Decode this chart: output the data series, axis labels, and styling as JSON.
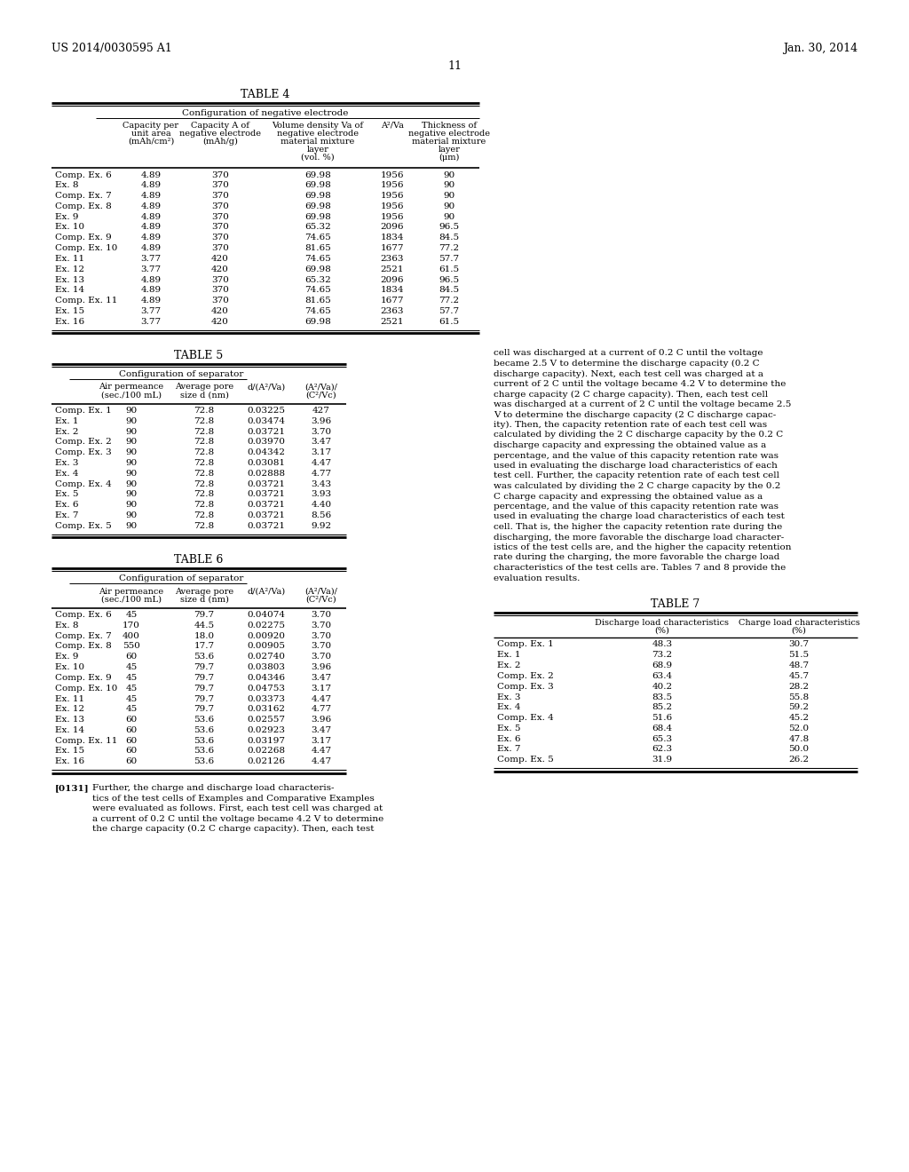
{
  "page_header_left": "US 2014/0030595 A1",
  "page_header_right": "Jan. 30, 2014",
  "page_number": "11",
  "table4_title": "TABLE 4",
  "table4_subtitle": "Configuration of negative electrode",
  "table5_title": "TABLE 5",
  "table5_subtitle": "Configuration of separator",
  "table6_title": "TABLE 6",
  "table6_subtitle": "Configuration of separator",
  "table7_title": "TABLE 7",
  "table4_rows": [
    [
      "Comp. Ex. 6",
      "4.89",
      "370",
      "69.98",
      "1956",
      "90"
    ],
    [
      "Ex. 8",
      "4.89",
      "370",
      "69.98",
      "1956",
      "90"
    ],
    [
      "Comp. Ex. 7",
      "4.89",
      "370",
      "69.98",
      "1956",
      "90"
    ],
    [
      "Comp. Ex. 8",
      "4.89",
      "370",
      "69.98",
      "1956",
      "90"
    ],
    [
      "Ex. 9",
      "4.89",
      "370",
      "69.98",
      "1956",
      "90"
    ],
    [
      "Ex. 10",
      "4.89",
      "370",
      "65.32",
      "2096",
      "96.5"
    ],
    [
      "Comp. Ex. 9",
      "4.89",
      "370",
      "74.65",
      "1834",
      "84.5"
    ],
    [
      "Comp. Ex. 10",
      "4.89",
      "370",
      "81.65",
      "1677",
      "77.2"
    ],
    [
      "Ex. 11",
      "3.77",
      "420",
      "74.65",
      "2363",
      "57.7"
    ],
    [
      "Ex. 12",
      "3.77",
      "420",
      "69.98",
      "2521",
      "61.5"
    ],
    [
      "Ex. 13",
      "4.89",
      "370",
      "65.32",
      "2096",
      "96.5"
    ],
    [
      "Ex. 14",
      "4.89",
      "370",
      "74.65",
      "1834",
      "84.5"
    ],
    [
      "Comp. Ex. 11",
      "4.89",
      "370",
      "81.65",
      "1677",
      "77.2"
    ],
    [
      "Ex. 15",
      "3.77",
      "420",
      "74.65",
      "2363",
      "57.7"
    ],
    [
      "Ex. 16",
      "3.77",
      "420",
      "69.98",
      "2521",
      "61.5"
    ]
  ],
  "table5_rows": [
    [
      "Comp. Ex. 1",
      "90",
      "72.8",
      "0.03225",
      "427"
    ],
    [
      "Ex. 1",
      "90",
      "72.8",
      "0.03474",
      "3.96"
    ],
    [
      "Ex. 2",
      "90",
      "72.8",
      "0.03721",
      "3.70"
    ],
    [
      "Comp. Ex. 2",
      "90",
      "72.8",
      "0.03970",
      "3.47"
    ],
    [
      "Comp. Ex. 3",
      "90",
      "72.8",
      "0.04342",
      "3.17"
    ],
    [
      "Ex. 3",
      "90",
      "72.8",
      "0.03081",
      "4.47"
    ],
    [
      "Ex. 4",
      "90",
      "72.8",
      "0.02888",
      "4.77"
    ],
    [
      "Comp. Ex. 4",
      "90",
      "72.8",
      "0.03721",
      "3.43"
    ],
    [
      "Ex. 5",
      "90",
      "72.8",
      "0.03721",
      "3.93"
    ],
    [
      "Ex. 6",
      "90",
      "72.8",
      "0.03721",
      "4.40"
    ],
    [
      "Ex. 7",
      "90",
      "72.8",
      "0.03721",
      "8.56"
    ],
    [
      "Comp. Ex. 5",
      "90",
      "72.8",
      "0.03721",
      "9.92"
    ]
  ],
  "table6_rows": [
    [
      "Comp. Ex. 6",
      "45",
      "79.7",
      "0.04074",
      "3.70"
    ],
    [
      "Ex. 8",
      "170",
      "44.5",
      "0.02275",
      "3.70"
    ],
    [
      "Comp. Ex. 7",
      "400",
      "18.0",
      "0.00920",
      "3.70"
    ],
    [
      "Comp. Ex. 8",
      "550",
      "17.7",
      "0.00905",
      "3.70"
    ],
    [
      "Ex. 9",
      "60",
      "53.6",
      "0.02740",
      "3.70"
    ],
    [
      "Ex. 10",
      "45",
      "79.7",
      "0.03803",
      "3.96"
    ],
    [
      "Comp. Ex. 9",
      "45",
      "79.7",
      "0.04346",
      "3.47"
    ],
    [
      "Comp. Ex. 10",
      "45",
      "79.7",
      "0.04753",
      "3.17"
    ],
    [
      "Ex. 11",
      "45",
      "79.7",
      "0.03373",
      "4.47"
    ],
    [
      "Ex. 12",
      "45",
      "79.7",
      "0.03162",
      "4.77"
    ],
    [
      "Ex. 13",
      "60",
      "53.6",
      "0.02557",
      "3.96"
    ],
    [
      "Ex. 14",
      "60",
      "53.6",
      "0.02923",
      "3.47"
    ],
    [
      "Comp. Ex. 11",
      "60",
      "53.6",
      "0.03197",
      "3.17"
    ],
    [
      "Ex. 15",
      "60",
      "53.6",
      "0.02268",
      "4.47"
    ],
    [
      "Ex. 16",
      "60",
      "53.6",
      "0.02126",
      "4.47"
    ]
  ],
  "table7_rows": [
    [
      "Comp. Ex. 1",
      "48.3",
      "30.7"
    ],
    [
      "Ex. 1",
      "73.2",
      "51.5"
    ],
    [
      "Ex. 2",
      "68.9",
      "48.7"
    ],
    [
      "Comp. Ex. 2",
      "63.4",
      "45.7"
    ],
    [
      "Comp. Ex. 3",
      "40.2",
      "28.2"
    ],
    [
      "Ex. 3",
      "83.5",
      "55.8"
    ],
    [
      "Ex. 4",
      "85.2",
      "59.2"
    ],
    [
      "Comp. Ex. 4",
      "51.6",
      "45.2"
    ],
    [
      "Ex. 5",
      "68.4",
      "52.0"
    ],
    [
      "Ex. 6",
      "65.3",
      "47.8"
    ],
    [
      "Ex. 7",
      "62.3",
      "50.0"
    ],
    [
      "Comp. Ex. 5",
      "31.9",
      "26.2"
    ]
  ],
  "body_text_lines": [
    "cell was discharged at a current of 0.2 C until the voltage",
    "became 2.5 V to determine the discharge capacity (0.2 C",
    "discharge capacity). Next, each test cell was charged at a",
    "current of 2 C until the voltage became 4.2 V to determine the",
    "charge capacity (2 C charge capacity). Then, each test cell",
    "was discharged at a current of 2 C until the voltage became 2.5",
    "V to determine the discharge capacity (2 C discharge capac-",
    "ity). Then, the capacity retention rate of each test cell was",
    "calculated by dividing the 2 C discharge capacity by the 0.2 C",
    "discharge capacity and expressing the obtained value as a",
    "percentage, and the value of this capacity retention rate was",
    "used in evaluating the discharge load characteristics of each",
    "test cell. Further, the capacity retention rate of each test cell",
    "was calculated by dividing the 2 C charge capacity by the 0.2",
    "C charge capacity and expressing the obtained value as a",
    "percentage, and the value of this capacity retention rate was",
    "used in evaluating the charge load characteristics of each test",
    "cell. That is, the higher the capacity retention rate during the",
    "discharging, the more favorable the discharge load character-",
    "istics of the test cells are, and the higher the capacity retention",
    "rate during the charging, the more favorable the charge load",
    "characteristics of the test cells are. Tables 7 and 8 provide the",
    "evaluation results."
  ],
  "para0131_lines": [
    "Further, the charge and discharge load characteris-",
    "tics of the test cells of Examples and Comparative Examples",
    "were evaluated as follows. First, each test cell was charged at",
    "a current of 0.2 C until the voltage became 4.2 V to determine",
    "the charge capacity (0.2 C charge capacity). Then, each test"
  ],
  "paragraph_tag": "[0131]"
}
